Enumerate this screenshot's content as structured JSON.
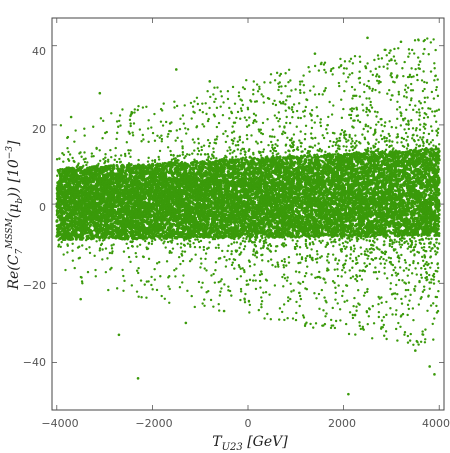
{
  "chart_data": {
    "type": "scatter",
    "title": "",
    "xlabel": "T_U23 [GeV]",
    "ylabel": "Re(C_7^MSSM(μ_b)) [10^-3]",
    "xlim": [
      -4100,
      4100
    ],
    "ylim": [
      -52,
      47
    ],
    "x_ticks": [
      -4000,
      -2000,
      0,
      2000,
      4000
    ],
    "y_ticks": [
      -40,
      -20,
      0,
      20,
      40
    ],
    "grid": false,
    "frame": true,
    "marker_color": "#3a9a0a",
    "dense_band": {
      "x_range": [
        -4000,
        4000
      ],
      "y_center_at_xmin": 0,
      "y_center_at_xmax": 3,
      "core_halfwidth_at_xmin": 9,
      "core_halfwidth_at_xmax": 11
    },
    "sample_points": [
      {
        "x": -3700,
        "y": 22
      },
      {
        "x": -3500,
        "y": -24
      },
      {
        "x": -3100,
        "y": 28
      },
      {
        "x": -2300,
        "y": -44
      },
      {
        "x": -2700,
        "y": -33
      },
      {
        "x": -1300,
        "y": -30
      },
      {
        "x": -1500,
        "y": 34
      },
      {
        "x": -800,
        "y": 31
      },
      {
        "x": -500,
        "y": -27
      },
      {
        "x": 1400,
        "y": 38
      },
      {
        "x": 2100,
        "y": -48
      },
      {
        "x": 2500,
        "y": 42
      },
      {
        "x": 3200,
        "y": 41
      },
      {
        "x": 3600,
        "y": 36
      },
      {
        "x": 3800,
        "y": -41
      },
      {
        "x": 3500,
        "y": -37
      },
      {
        "x": 3900,
        "y": -43
      },
      {
        "x": 3000,
        "y": 33
      }
    ]
  },
  "axes": {
    "x_tick_labels": [
      "−4000",
      "−2000",
      "0",
      "2000",
      "4000"
    ],
    "y_tick_labels": [
      "40",
      "20",
      "0",
      "−20",
      "−40"
    ]
  },
  "labels": {
    "x_title_main": "T",
    "x_title_sub": "U23",
    "x_title_unit": " [GeV]",
    "y_title_lead": "Re(C",
    "y_title_sub": "7",
    "y_title_sup": "MSSM",
    "y_title_arg": "(μ",
    "y_title_arg_sub": "b",
    "y_title_tail": ")) [10",
    "y_title_exp": "−3",
    "y_title_close": "]"
  }
}
